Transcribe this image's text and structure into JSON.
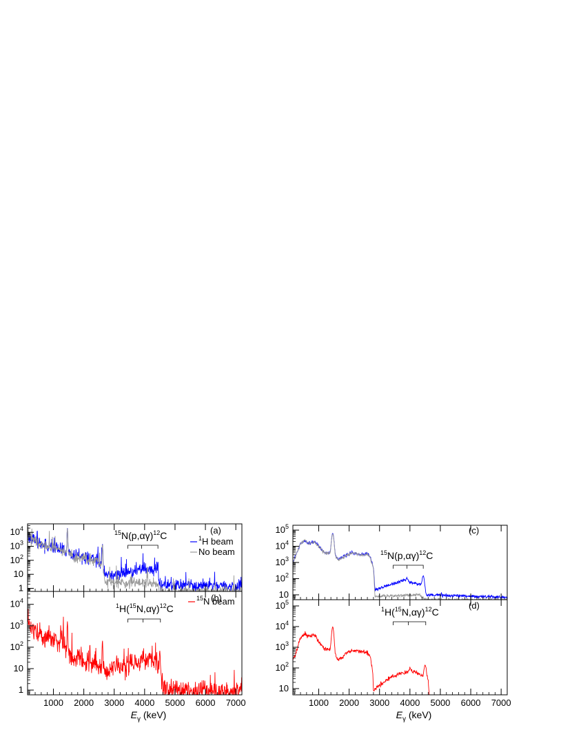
{
  "chart_data": [
    {
      "id": "a",
      "type": "line",
      "panel_label": "(a)",
      "xlabel": "E",
      "xlabel_sub": "γ",
      "xlabel_unit": " (keV)",
      "xlim": [
        150,
        7200
      ],
      "ylim": [
        0.6,
        40000
      ],
      "yscale": "log",
      "xticks": [
        1000,
        2000,
        3000,
        4000,
        5000,
        6000,
        7000
      ],
      "yticks": [
        {
          "v": 1,
          "base": "1",
          "exp": ""
        },
        {
          "v": 10,
          "base": "10",
          "exp": ""
        },
        {
          "v": 100,
          "base": "10",
          "exp": "2"
        },
        {
          "v": 1000,
          "base": "10",
          "exp": "3"
        },
        {
          "v": 10000,
          "base": "10",
          "exp": "4"
        }
      ],
      "reaction": {
        "pre1": "15",
        "t1": "N(p,",
        "greek": "αγ",
        "t2": ")",
        "pre2": "12",
        "t3": "C",
        "bracket_x": [
          3450,
          4438
        ],
        "mid_tick": 3900
      },
      "legend": [
        {
          "pre": "1",
          "text": "H beam",
          "color": "#0000ff"
        },
        {
          "pre": "",
          "text": "No beam",
          "color": "#999999"
        }
      ],
      "series": [
        {
          "name": "1H beam",
          "color": "#0000ff",
          "noise": 0.5,
          "peaks": [
            [
              1460,
              20000
            ],
            [
              2614,
              1500
            ],
            [
              4438,
              60
            ],
            [
              3900,
              6
            ]
          ],
          "envelope": [
            [
              150,
              9000
            ],
            [
              300,
              3000
            ],
            [
              600,
              1500
            ],
            [
              1000,
              700
            ],
            [
              1400,
              450
            ],
            [
              1600,
              250
            ],
            [
              2000,
              150
            ],
            [
              2400,
              110
            ],
            [
              2600,
              60
            ],
            [
              2700,
              12
            ],
            [
              3000,
              8
            ],
            [
              3500,
              15
            ],
            [
              3900,
              25
            ],
            [
              4200,
              20
            ],
            [
              4430,
              20
            ],
            [
              4460,
              2
            ],
            [
              4600,
              1.6
            ],
            [
              7200,
              1.4
            ]
          ]
        },
        {
          "name": "No beam",
          "color": "#999999",
          "noise": 0.4,
          "peaks": [
            [
              1460,
              19000
            ],
            [
              2614,
              1400
            ]
          ],
          "envelope": [
            [
              150,
              9000
            ],
            [
              300,
              3000
            ],
            [
              600,
              1500
            ],
            [
              1000,
              700
            ],
            [
              1400,
              400
            ],
            [
              1600,
              200
            ],
            [
              2000,
              120
            ],
            [
              2400,
              90
            ],
            [
              2600,
              40
            ],
            [
              2700,
              3
            ],
            [
              4000,
              2.5
            ],
            [
              4450,
              1.5
            ],
            [
              4500,
              0.6
            ],
            [
              7200,
              0.6
            ]
          ]
        }
      ]
    },
    {
      "id": "b",
      "type": "line",
      "panel_label": "(b)",
      "xlabel": "E",
      "xlabel_sub": "γ",
      "xlabel_unit": " (keV)",
      "xlim": [
        150,
        7200
      ],
      "ylim": [
        0.6,
        40000
      ],
      "yscale": "log",
      "xticks": [
        1000,
        2000,
        3000,
        4000,
        5000,
        6000,
        7000
      ],
      "yticks": [
        {
          "v": 1,
          "base": "1",
          "exp": ""
        },
        {
          "v": 10,
          "base": "10",
          "exp": ""
        },
        {
          "v": 100,
          "base": "10",
          "exp": "2"
        },
        {
          "v": 1000,
          "base": "10",
          "exp": "3"
        },
        {
          "v": 10000,
          "base": "10",
          "exp": "4"
        }
      ],
      "reaction": {
        "pre1": "1",
        "t1": "H(",
        "pre_mid": "15",
        "t2": "N,",
        "greek": "αγ",
        "t3": ")",
        "pre2": "12",
        "t4": "C",
        "bracket_x": [
          3450,
          4520
        ],
        "mid_tick": 3950
      },
      "legend": [
        {
          "pre": "15",
          "text": "N beam",
          "color": "#ff0000"
        }
      ],
      "series": [
        {
          "name": "15N beam",
          "color": "#ff0000",
          "noise": 0.55,
          "peaks": [
            [
              1460,
              1500
            ],
            [
              2614,
              200
            ],
            [
              4500,
              60
            ],
            [
              4000,
              5
            ]
          ],
          "envelope": [
            [
              150,
              2000
            ],
            [
              300,
              700
            ],
            [
              600,
              350
            ],
            [
              1000,
              250
            ],
            [
              1400,
              120
            ],
            [
              1600,
              40
            ],
            [
              2000,
              20
            ],
            [
              2400,
              15
            ],
            [
              2600,
              12
            ],
            [
              2700,
              8
            ],
            [
              3000,
              12
            ],
            [
              3500,
              15
            ],
            [
              4000,
              25
            ],
            [
              4400,
              20
            ],
            [
              4500,
              20
            ],
            [
              4560,
              1.5
            ],
            [
              4700,
              0.9
            ],
            [
              7200,
              0.8
            ]
          ]
        }
      ]
    },
    {
      "id": "c",
      "type": "line",
      "panel_label": "(c)",
      "xlabel": "E",
      "xlabel_sub": "γ",
      "xlabel_unit": " (keV)",
      "xlim": [
        150,
        7200
      ],
      "ylim": [
        5,
        200000
      ],
      "yscale": "log",
      "xticks": [
        1000,
        2000,
        3000,
        4000,
        5000,
        6000,
        7000
      ],
      "yticks": [
        {
          "v": 10,
          "base": "10",
          "exp": ""
        },
        {
          "v": 100,
          "base": "10",
          "exp": "2"
        },
        {
          "v": 1000,
          "base": "10",
          "exp": "3"
        },
        {
          "v": 10000,
          "base": "10",
          "exp": "4"
        },
        {
          "v": 100000,
          "base": "10",
          "exp": "5"
        }
      ],
      "reaction": {
        "pre1": "15",
        "t1": "N(p,",
        "greek": "αγ",
        "t2": ")",
        "pre2": "12",
        "t3": "C",
        "bracket_x": [
          3450,
          4438
        ],
        "mid_tick": 3900
      },
      "legend": [],
      "series": [
        {
          "name": "1H beam",
          "color": "#0000ff",
          "noise": 0.12,
          "peaks": [
            [
              1460,
              60000
            ],
            [
              3900,
              35
            ],
            [
              4438,
              120
            ]
          ],
          "envelope": [
            [
              150,
              900
            ],
            [
              250,
              3000
            ],
            [
              400,
              15000
            ],
            [
              550,
              25000
            ],
            [
              650,
              15000
            ],
            [
              850,
              20000
            ],
            [
              1000,
              10000
            ],
            [
              1200,
              4000
            ],
            [
              1350,
              4000
            ],
            [
              1550,
              2500
            ],
            [
              1650,
              1500
            ],
            [
              1750,
              2000
            ],
            [
              1900,
              3000
            ],
            [
              2100,
              4000
            ],
            [
              2400,
              3000
            ],
            [
              2600,
              3500
            ],
            [
              2700,
              2000
            ],
            [
              2800,
              500
            ],
            [
              2850,
              20
            ],
            [
              3000,
              25
            ],
            [
              3300,
              40
            ],
            [
              3600,
              60
            ],
            [
              3800,
              80
            ],
            [
              4100,
              55
            ],
            [
              4380,
              40
            ],
            [
              4470,
              25
            ],
            [
              4550,
              10
            ],
            [
              7200,
              7
            ]
          ]
        },
        {
          "name": "No beam",
          "color": "#999999",
          "noise": 0.1,
          "peaks": [
            [
              1460,
              55000
            ]
          ],
          "envelope": [
            [
              150,
              850
            ],
            [
              250,
              2900
            ],
            [
              400,
              14000
            ],
            [
              550,
              24000
            ],
            [
              650,
              14000
            ],
            [
              850,
              19000
            ],
            [
              1000,
              9500
            ],
            [
              1200,
              3800
            ],
            [
              1350,
              3800
            ],
            [
              1550,
              2300
            ],
            [
              1650,
              1300
            ],
            [
              1750,
              1800
            ],
            [
              1900,
              2800
            ],
            [
              2100,
              3800
            ],
            [
              2400,
              2800
            ],
            [
              2600,
              3300
            ],
            [
              2700,
              1800
            ],
            [
              2800,
              450
            ],
            [
              2850,
              8
            ],
            [
              3500,
              9
            ],
            [
              4300,
              10
            ],
            [
              4450,
              6
            ],
            [
              4500,
              5
            ],
            [
              7200,
              5
            ]
          ]
        }
      ]
    },
    {
      "id": "d",
      "type": "line",
      "panel_label": "(d)",
      "xlabel": "E",
      "xlabel_sub": "γ",
      "xlabel_unit": " (keV)",
      "xlim": [
        150,
        7200
      ],
      "ylim": [
        5,
        200000
      ],
      "yscale": "log",
      "xticks": [
        1000,
        2000,
        3000,
        4000,
        5000,
        6000,
        7000
      ],
      "yticks": [
        {
          "v": 10,
          "base": "10",
          "exp": ""
        },
        {
          "v": 100,
          "base": "10",
          "exp": "2"
        },
        {
          "v": 1000,
          "base": "10",
          "exp": "3"
        },
        {
          "v": 10000,
          "base": "10",
          "exp": "4"
        },
        {
          "v": 100000,
          "base": "10",
          "exp": "5"
        }
      ],
      "reaction": {
        "pre1": "1",
        "t1": "H(",
        "pre_mid": "15",
        "t2": "N,",
        "greek": "αγ",
        "t3": ")",
        "pre2": "12",
        "t4": "C",
        "bracket_x": [
          3450,
          4520
        ],
        "mid_tick": 3950
      },
      "legend": [],
      "series": [
        {
          "name": "15N beam",
          "color": "#ff0000",
          "noise": 0.12,
          "peaks": [
            [
              1460,
              9000
            ],
            [
              4500,
              100
            ],
            [
              4000,
              30
            ]
          ],
          "envelope": [
            [
              150,
              250
            ],
            [
              250,
              500
            ],
            [
              400,
              3000
            ],
            [
              550,
              4500
            ],
            [
              650,
              3500
            ],
            [
              850,
              3800
            ],
            [
              1000,
              2000
            ],
            [
              1200,
              800
            ],
            [
              1350,
              800
            ],
            [
              1550,
              400
            ],
            [
              1650,
              250
            ],
            [
              1750,
              300
            ],
            [
              1900,
              500
            ],
            [
              2100,
              700
            ],
            [
              2400,
              600
            ],
            [
              2600,
              550
            ],
            [
              2700,
              400
            ],
            [
              2780,
              50
            ],
            [
              2800,
              8
            ],
            [
              3000,
              15
            ],
            [
              3300,
              30
            ],
            [
              3600,
              50
            ],
            [
              3800,
              60
            ],
            [
              4000,
              70
            ],
            [
              4200,
              60
            ],
            [
              4450,
              40
            ],
            [
              4600,
              30
            ],
            [
              4650,
              2
            ],
            [
              7200,
              1
            ]
          ]
        }
      ]
    }
  ]
}
